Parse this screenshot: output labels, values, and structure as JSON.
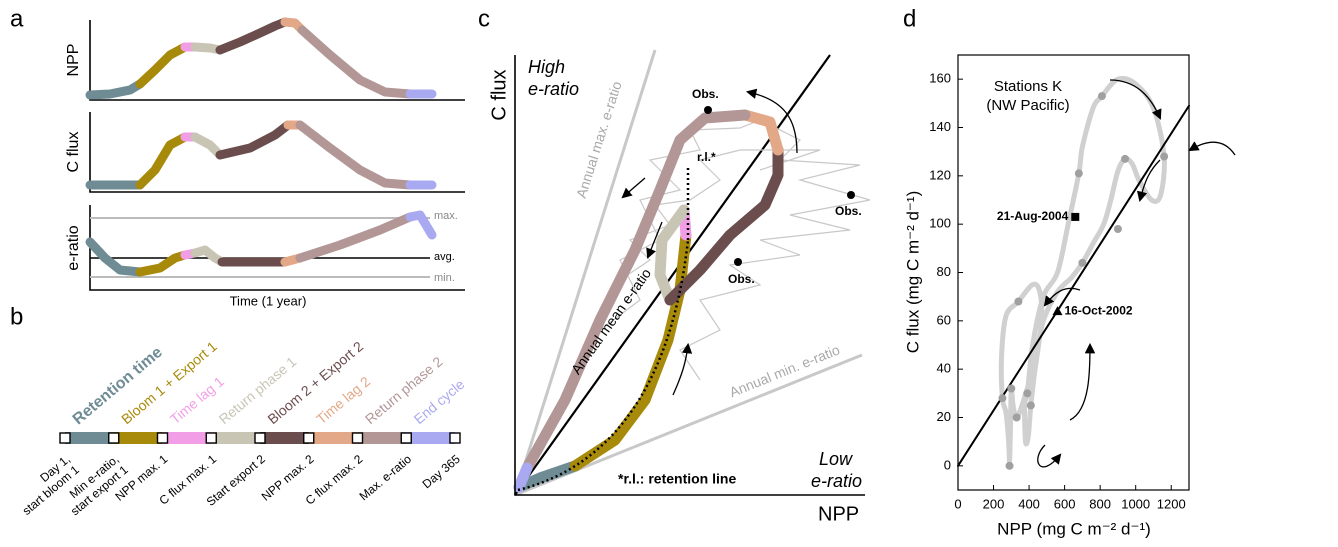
{
  "panel_a": {
    "label": "a",
    "ylabels": [
      "NPP",
      "C flux",
      "e-ratio"
    ],
    "ratio_lines": [
      "max.",
      "avg.",
      "min."
    ],
    "xlabel": "Time (1 year)"
  },
  "panel_b": {
    "label": "b",
    "phases": [
      {
        "name": "Retention time",
        "color": "#6f8c95"
      },
      {
        "name": "Bloom 1 + Export 1",
        "color": "#a88a0a"
      },
      {
        "name": "Time lag 1",
        "color": "#f29ee6"
      },
      {
        "name": "Return phase 1",
        "color": "#c9c5b5"
      },
      {
        "name": "Bloom 2 + Export 2",
        "color": "#6b4d4d"
      },
      {
        "name": "Time lag 2",
        "color": "#e3a888"
      },
      {
        "name": "Return phase 2",
        "color": "#b39797"
      },
      {
        "name": "End cycle",
        "color": "#a9a9f2"
      }
    ],
    "markers": [
      [
        "Day 1,",
        "start bloom 1"
      ],
      [
        "Min e-ratio,",
        "start export 1"
      ],
      [
        "NPP max. 1"
      ],
      [
        "C flux max. 1"
      ],
      [
        "Start export 2"
      ],
      [
        "NPP max. 2"
      ],
      [
        "C flux max. 2"
      ],
      [
        "Max. e-ratio"
      ],
      [
        "Day 365"
      ]
    ]
  },
  "panel_c": {
    "label": "c",
    "ylabel": "C flux",
    "xlabel": "NPP",
    "high": [
      "High",
      "e-ratio"
    ],
    "low": [
      "Low",
      "e-ratio"
    ],
    "lines": [
      "Annual max. e-ratio",
      "Annual mean e-ratio",
      "Annual min. e-ratio"
    ],
    "rl": "r.l.*",
    "footnote": "*r.l.: retention line",
    "obs": [
      "Obs.",
      "Obs.",
      "Obs."
    ]
  },
  "chart_data": {
    "type": "line",
    "label": "d",
    "annotation": [
      "Stations K",
      "(NW Pacific)"
    ],
    "xlabel": "NPP (mg C m⁻² d⁻¹)",
    "ylabel": "C flux (mg C m⁻² d⁻¹)",
    "xlim": [
      0,
      1300
    ],
    "ylim": [
      -10,
      170
    ],
    "xticks": [
      0,
      200,
      400,
      600,
      800,
      1000,
      1200
    ],
    "yticks": [
      0,
      20,
      40,
      60,
      80,
      100,
      120,
      140,
      160
    ],
    "series": [
      {
        "color": "#d0d0d0",
        "mode": "line",
        "x": [
          290,
          285,
          270,
          250,
          245,
          270,
          340,
          420,
          460,
          470,
          430,
          410,
          395,
          380,
          375,
          390,
          420,
          480,
          560,
          620,
          680,
          700,
          760,
          810,
          900,
          1000,
          1100,
          1160,
          1140,
          1090,
          1020,
          980,
          940,
          900,
          860,
          820,
          760,
          700,
          640,
          560,
          480,
          420,
          360,
          330,
          310,
          300,
          295,
          290
        ],
        "values": [
          0,
          10,
          22,
          28,
          45,
          62,
          68,
          75,
          72,
          60,
          38,
          25,
          12,
          10,
          25,
          30,
          50,
          70,
          80,
          100,
          121,
          132,
          148,
          153,
          160,
          158,
          148,
          128,
          112,
          110,
          118,
          125,
          127,
          122,
          110,
          100,
          92,
          84,
          78,
          72,
          60,
          40,
          25,
          20,
          25,
          32,
          15,
          0
        ]
      },
      {
        "color": "#000000",
        "mode": "line",
        "x": [
          0,
          1300
        ],
        "values": [
          0,
          149
        ]
      },
      {
        "color": "#a0a0a0",
        "mode": "markers",
        "x": [
          290,
          250,
          300,
          330,
          390,
          410,
          340,
          700,
          900,
          680,
          940,
          1160,
          810
        ],
        "values": [
          0,
          28,
          32,
          20,
          30,
          25,
          68,
          84,
          98,
          121,
          127,
          128,
          153
        ]
      }
    ],
    "events": [
      {
        "text": "21-Aug-2004",
        "x": 660,
        "y": 103,
        "marker": "square"
      },
      {
        "text": "16-Oct-2002",
        "x": 560,
        "y": 64,
        "marker": "triangle"
      }
    ]
  }
}
